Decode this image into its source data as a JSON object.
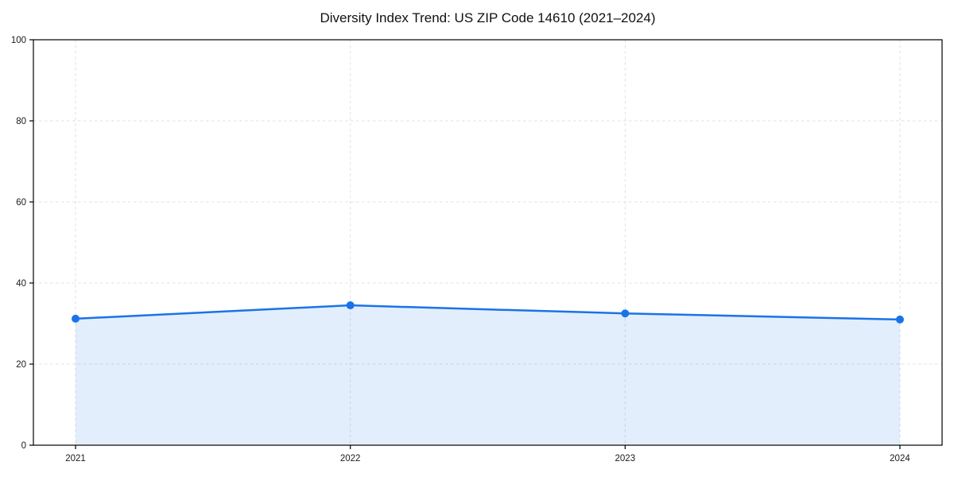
{
  "chart_data": {
    "type": "area",
    "title": "Diversity Index Trend: US ZIP Code 14610 (2021–2024)",
    "categories": [
      "2021",
      "2022",
      "2023",
      "2024"
    ],
    "values": [
      31.2,
      34.5,
      32.5,
      31.0
    ],
    "series_name": "Diversity Index",
    "xlabel": "",
    "ylabel": "",
    "ylim": [
      0,
      100
    ],
    "yticks": [
      0,
      20,
      40,
      60,
      80,
      100
    ],
    "grid": "dashed-both-axes",
    "legend": "none",
    "colors": {
      "line": "#1a73e8",
      "marker": "#1a73e8",
      "fill": "#1a73e8",
      "fill_opacity": 0.12,
      "gridline": "#e0e0e0",
      "axis_frame": "#000000",
      "tick_label": "#1a1a1a",
      "title": "#111111",
      "background": "#ffffff"
    }
  }
}
